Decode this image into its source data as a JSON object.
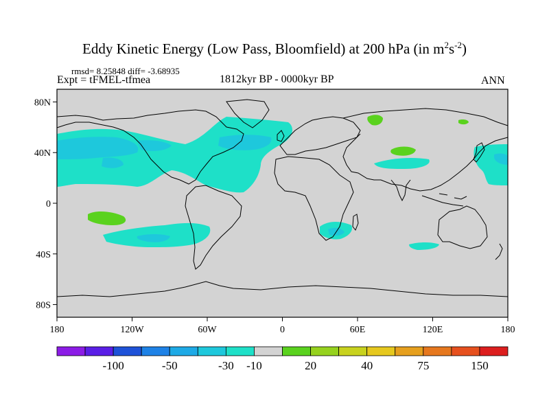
{
  "title": {
    "main": "Eddy Kinetic Energy (Low Pass, Bloomfield) at 200 hPa (in m",
    "sup1": "2",
    "mid": "s",
    "sup2": "-2",
    "close": ")"
  },
  "stats": "rmsd= 8.25848  diff= -3.68935",
  "experiment": "Expt = tFMEL-tfmea",
  "period": "1812kyr BP - 0000kyr BP",
  "season": "ANN",
  "map": {
    "background": "#d3d3d3",
    "lat_labels": [
      "80N",
      "40N",
      "0",
      "40S",
      "80S"
    ],
    "lat_values": [
      80,
      40,
      0,
      -40,
      -80
    ],
    "lon_labels": [
      "180",
      "120W",
      "60W",
      "0",
      "60E",
      "120E",
      "180"
    ],
    "lon_values": [
      -180,
      -120,
      -60,
      0,
      60,
      120,
      180
    ]
  },
  "colorbar": {
    "colors": [
      "#8c1ce6",
      "#5a1ee6",
      "#1e52d8",
      "#1e82e6",
      "#1eaae6",
      "#1ec8dc",
      "#1ee0c8",
      "#d3d3d3",
      "#5ad21e",
      "#96d21e",
      "#c8d21e",
      "#e6c81e",
      "#e6a01e",
      "#e6781e",
      "#e6501e",
      "#dc1e1e"
    ],
    "labels": [
      "-100",
      "-50",
      "-30",
      "-10",
      "20",
      "40",
      "75",
      "150"
    ]
  },
  "field_colors": {
    "light": "#1ee0c8",
    "medium": "#1ec8dc",
    "positive": "#5ad21e"
  }
}
